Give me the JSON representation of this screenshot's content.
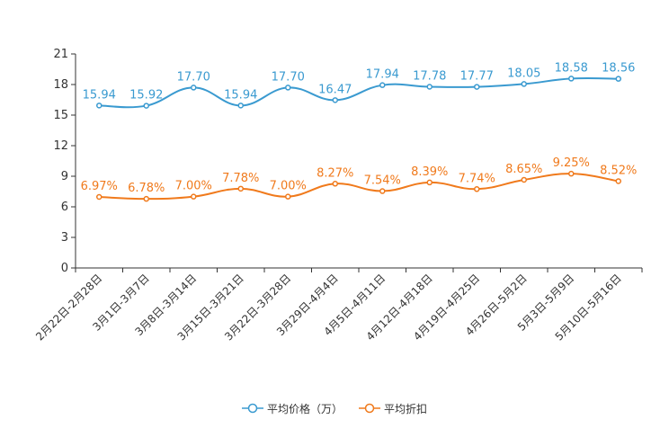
{
  "chart_data": {
    "type": "line",
    "title": "",
    "xlabel": "",
    "ylabel": "",
    "ylim": [
      0,
      21
    ],
    "yticks": [
      "0",
      "3",
      "6",
      "9",
      "12",
      "15",
      "18",
      "21"
    ],
    "categories": [
      "2月22日-2月28日",
      "3月1日-3月7日",
      "3月8日-3月14日",
      "3月15日-3月21日",
      "3月22日-3月28日",
      "3月29日-4月4日",
      "4月5日-4月11日",
      "4月12日-4月18日",
      "4月19日-4月25日",
      "4月26日-5月2日",
      "5月3日-5月9日",
      "5月10日-5月16日"
    ],
    "series": [
      {
        "name": "平均价格（万）",
        "color": "#3a9ad0",
        "values": [
          15.94,
          15.92,
          17.7,
          15.94,
          17.7,
          16.47,
          17.94,
          17.78,
          17.77,
          18.05,
          18.58,
          18.56
        ],
        "labels": [
          "15.94",
          "15.92",
          "17.70",
          "15.94",
          "17.70",
          "16.47",
          "17.94",
          "17.78",
          "17.77",
          "18.05",
          "18.58",
          "18.56"
        ]
      },
      {
        "name": "平均折扣",
        "color": "#f07a1c",
        "values": [
          6.97,
          6.78,
          7.0,
          7.78,
          7.0,
          8.27,
          7.54,
          8.39,
          7.74,
          8.65,
          9.25,
          8.52
        ],
        "labels": [
          "6.97%",
          "6.78%",
          "7.00%",
          "7.78%",
          "7.00%",
          "8.27%",
          "7.54%",
          "8.39%",
          "7.74%",
          "8.65%",
          "9.25%",
          "8.52%"
        ]
      }
    ],
    "legend_position": "bottom-center",
    "grid": false
  }
}
